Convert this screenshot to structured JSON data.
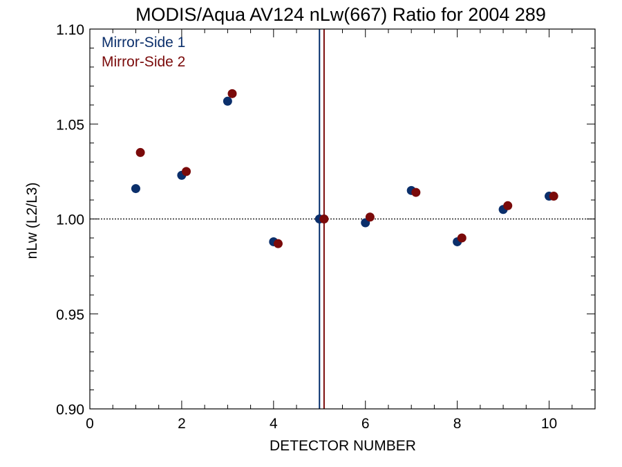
{
  "chart_data": {
    "type": "scatter",
    "title": "MODIS/Aqua AV124 nLw(667) Ratio for 2004 289",
    "xlabel": "DETECTOR NUMBER",
    "ylabel": "nLw (L2/L3)",
    "xlim": [
      0,
      11
    ],
    "ylim": [
      0.9,
      1.1
    ],
    "xticks": [
      0,
      2,
      4,
      6,
      8,
      10
    ],
    "xtick_labels": [
      "0",
      "2",
      "4",
      "6",
      "8",
      "10"
    ],
    "yticks": [
      0.9,
      0.95,
      1.0,
      1.05,
      1.1
    ],
    "ytick_labels": [
      "0.90",
      "0.95",
      "1.00",
      "1.05",
      "1.10"
    ],
    "reference_line_y": 1.0,
    "vertical_lines": [
      {
        "x": 5.0,
        "color": "#002b6b"
      },
      {
        "x": 5.1,
        "color": "#7a0a0a"
      }
    ],
    "legend_position": "top-left",
    "series": [
      {
        "name": "Mirror-Side 1",
        "color": "#0b2f6b",
        "x": [
          1,
          2,
          3,
          4,
          5,
          6,
          7,
          8,
          9,
          10
        ],
        "y": [
          1.016,
          1.023,
          1.062,
          0.988,
          1.0,
          0.998,
          1.015,
          0.988,
          1.005,
          1.012
        ]
      },
      {
        "name": "Mirror-Side 2",
        "color": "#7a0a0a",
        "x": [
          1.1,
          2.1,
          3.1,
          4.1,
          5.1,
          6.1,
          7.1,
          8.1,
          9.1,
          10.1
        ],
        "y": [
          1.035,
          1.025,
          1.066,
          0.987,
          1.0,
          1.001,
          1.014,
          0.99,
          1.007,
          1.012
        ]
      }
    ]
  }
}
